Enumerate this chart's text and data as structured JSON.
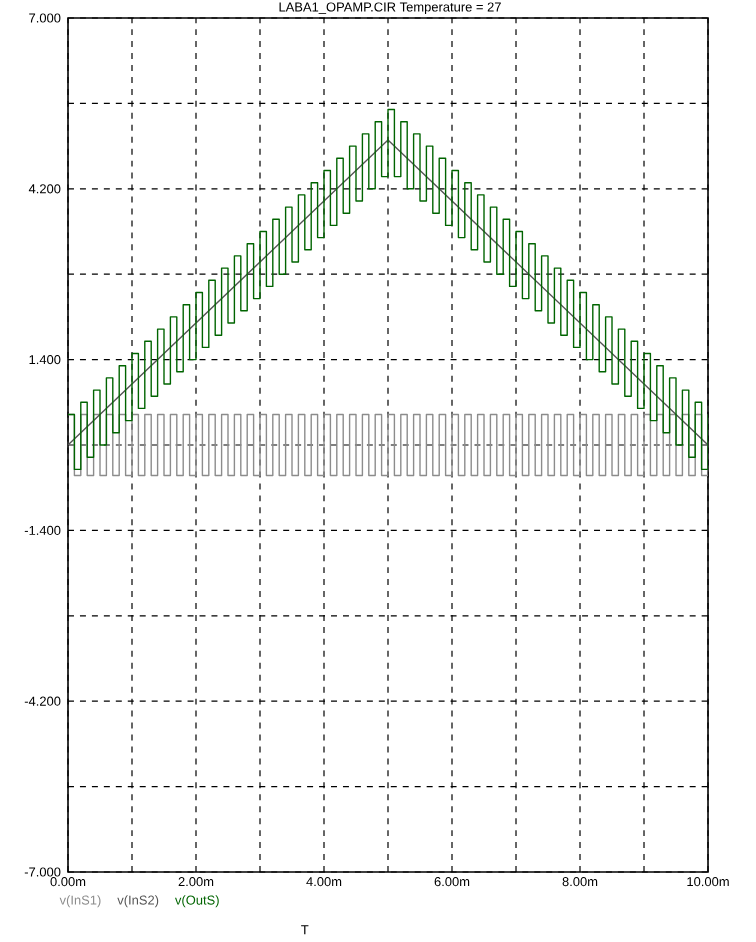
{
  "chart_data": {
    "type": "step",
    "title": "LABA1_OPAMP.CIR Temperature = 27",
    "xlabel": "T",
    "x": [
      0,
      0.1,
      0.2,
      0.3,
      0.4,
      0.5,
      0.6,
      0.7,
      0.8,
      0.9,
      1.0,
      1.1,
      1.2,
      1.3,
      1.4,
      1.5,
      1.6,
      1.7,
      1.8,
      1.9,
      2.0,
      2.1,
      2.2,
      2.3,
      2.4,
      2.5,
      2.6,
      2.7,
      2.8,
      2.9,
      3.0,
      3.1,
      3.2,
      3.3,
      3.4,
      3.5,
      3.6,
      3.7,
      3.8,
      3.9,
      4.0,
      4.1,
      4.2,
      4.3,
      4.4,
      4.5,
      4.6,
      4.7,
      4.8,
      4.9,
      5.0,
      5.1,
      5.2,
      5.3,
      5.4,
      5.5,
      5.6,
      5.7,
      5.8,
      5.9,
      6.0,
      6.1,
      6.2,
      6.3,
      6.4,
      6.5,
      6.6,
      6.7,
      6.8,
      6.9,
      7.0,
      7.1,
      7.2,
      7.3,
      7.4,
      7.5,
      7.6,
      7.7,
      7.8,
      7.9,
      8.0,
      8.1,
      8.2,
      8.3,
      8.4,
      8.5,
      8.6,
      8.7,
      8.8,
      8.9,
      9.0,
      9.1,
      9.2,
      9.3,
      9.4,
      9.5,
      9.6,
      9.7,
      9.8,
      9.9,
      10.0
    ],
    "series": [
      {
        "name": "v(InS1)",
        "color": "#8c8c8c",
        "values": [
          0.5,
          -0.5,
          0.5,
          -0.5,
          0.5,
          -0.5,
          0.5,
          -0.5,
          0.5,
          -0.5,
          0.5,
          -0.5,
          0.5,
          -0.5,
          0.5,
          -0.5,
          0.5,
          -0.5,
          0.5,
          -0.5,
          0.5,
          -0.5,
          0.5,
          -0.5,
          0.5,
          -0.5,
          0.5,
          -0.5,
          0.5,
          -0.5,
          0.5,
          -0.5,
          0.5,
          -0.5,
          0.5,
          -0.5,
          0.5,
          -0.5,
          0.5,
          -0.5,
          0.5,
          -0.5,
          0.5,
          -0.5,
          0.5,
          -0.5,
          0.5,
          -0.5,
          0.5,
          -0.5,
          0.5,
          -0.5,
          0.5,
          -0.5,
          0.5,
          -0.5,
          0.5,
          -0.5,
          0.5,
          -0.5,
          0.5,
          -0.5,
          0.5,
          -0.5,
          0.5,
          -0.5,
          0.5,
          -0.5,
          0.5,
          -0.5,
          0.5,
          -0.5,
          0.5,
          -0.5,
          0.5,
          -0.5,
          0.5,
          -0.5,
          0.5,
          -0.5,
          0.5,
          -0.5,
          0.5,
          -0.5,
          0.5,
          -0.5,
          0.5,
          -0.5,
          0.5,
          -0.5,
          0.5,
          -0.5,
          0.5,
          -0.5,
          0.5,
          -0.5,
          0.5,
          -0.5,
          0.5,
          -0.5,
          0.5
        ]
      },
      {
        "name": "v(InS2)",
        "type": "line",
        "color": "#555555",
        "x": [
          0,
          5.0,
          10.0
        ],
        "values": [
          0,
          5.0,
          0
        ]
      },
      {
        "name": "v(OutS)",
        "color": "#006400",
        "values": [
          0.5,
          -0.4,
          0.7,
          -0.2,
          0.9,
          0,
          1.1,
          0.2,
          1.3,
          0.4,
          1.5,
          0.6,
          1.7,
          0.8,
          1.9,
          1.0,
          2.1,
          1.2,
          2.3,
          1.4,
          2.5,
          1.6,
          2.7,
          1.8,
          2.9,
          2.0,
          3.1,
          2.2,
          3.3,
          2.4,
          3.5,
          2.6,
          3.7,
          2.8,
          3.9,
          3.0,
          4.1,
          3.2,
          4.3,
          3.4,
          4.5,
          3.6,
          4.7,
          3.8,
          4.9,
          4.0,
          5.1,
          4.2,
          5.3,
          4.4,
          5.5,
          4.4,
          5.3,
          4.2,
          5.1,
          4.0,
          4.9,
          3.8,
          4.7,
          3.6,
          4.5,
          3.4,
          4.3,
          3.2,
          4.1,
          3.0,
          3.9,
          2.8,
          3.7,
          2.6,
          3.5,
          2.4,
          3.3,
          2.2,
          3.1,
          2.0,
          2.9,
          1.8,
          2.7,
          1.6,
          2.5,
          1.4,
          2.3,
          1.2,
          2.1,
          1.0,
          1.9,
          0.8,
          1.7,
          0.6,
          1.5,
          0.4,
          1.3,
          0.2,
          1.1,
          0,
          0.9,
          -0.2,
          0.7,
          -0.4,
          0.5
        ]
      }
    ],
    "xlim": [
      0,
      10
    ],
    "xticks": [
      {
        "value": 0,
        "label": "0.00m"
      },
      {
        "value": 1,
        "label": null
      },
      {
        "value": 2,
        "label": "2.00m"
      },
      {
        "value": 3,
        "label": null
      },
      {
        "value": 4,
        "label": "4.00m"
      },
      {
        "value": 5,
        "label": null
      },
      {
        "value": 6,
        "label": "6.00m"
      },
      {
        "value": 7,
        "label": null
      },
      {
        "value": 8,
        "label": "8.00m"
      },
      {
        "value": 9,
        "label": null
      },
      {
        "value": 10,
        "label": "10.00m"
      }
    ],
    "ylim": [
      -7,
      7
    ],
    "yticks": [
      {
        "value": -7,
        "label": "-7.000"
      },
      {
        "value": -5.6,
        "label": null
      },
      {
        "value": -4.2,
        "label": "-4.200"
      },
      {
        "value": -2.8,
        "label": null
      },
      {
        "value": -1.4,
        "label": "-1.400"
      },
      {
        "value": 0,
        "label": null
      },
      {
        "value": 1.4,
        "label": "1.400"
      },
      {
        "value": 2.8,
        "label": null
      },
      {
        "value": 4.2,
        "label": "4.200"
      },
      {
        "value": 5.6,
        "label": null
      },
      {
        "value": 7,
        "label": "7.000"
      }
    ],
    "grid": true,
    "legend": "bottom left",
    "marker": "none",
    "line_style": "solid"
  }
}
